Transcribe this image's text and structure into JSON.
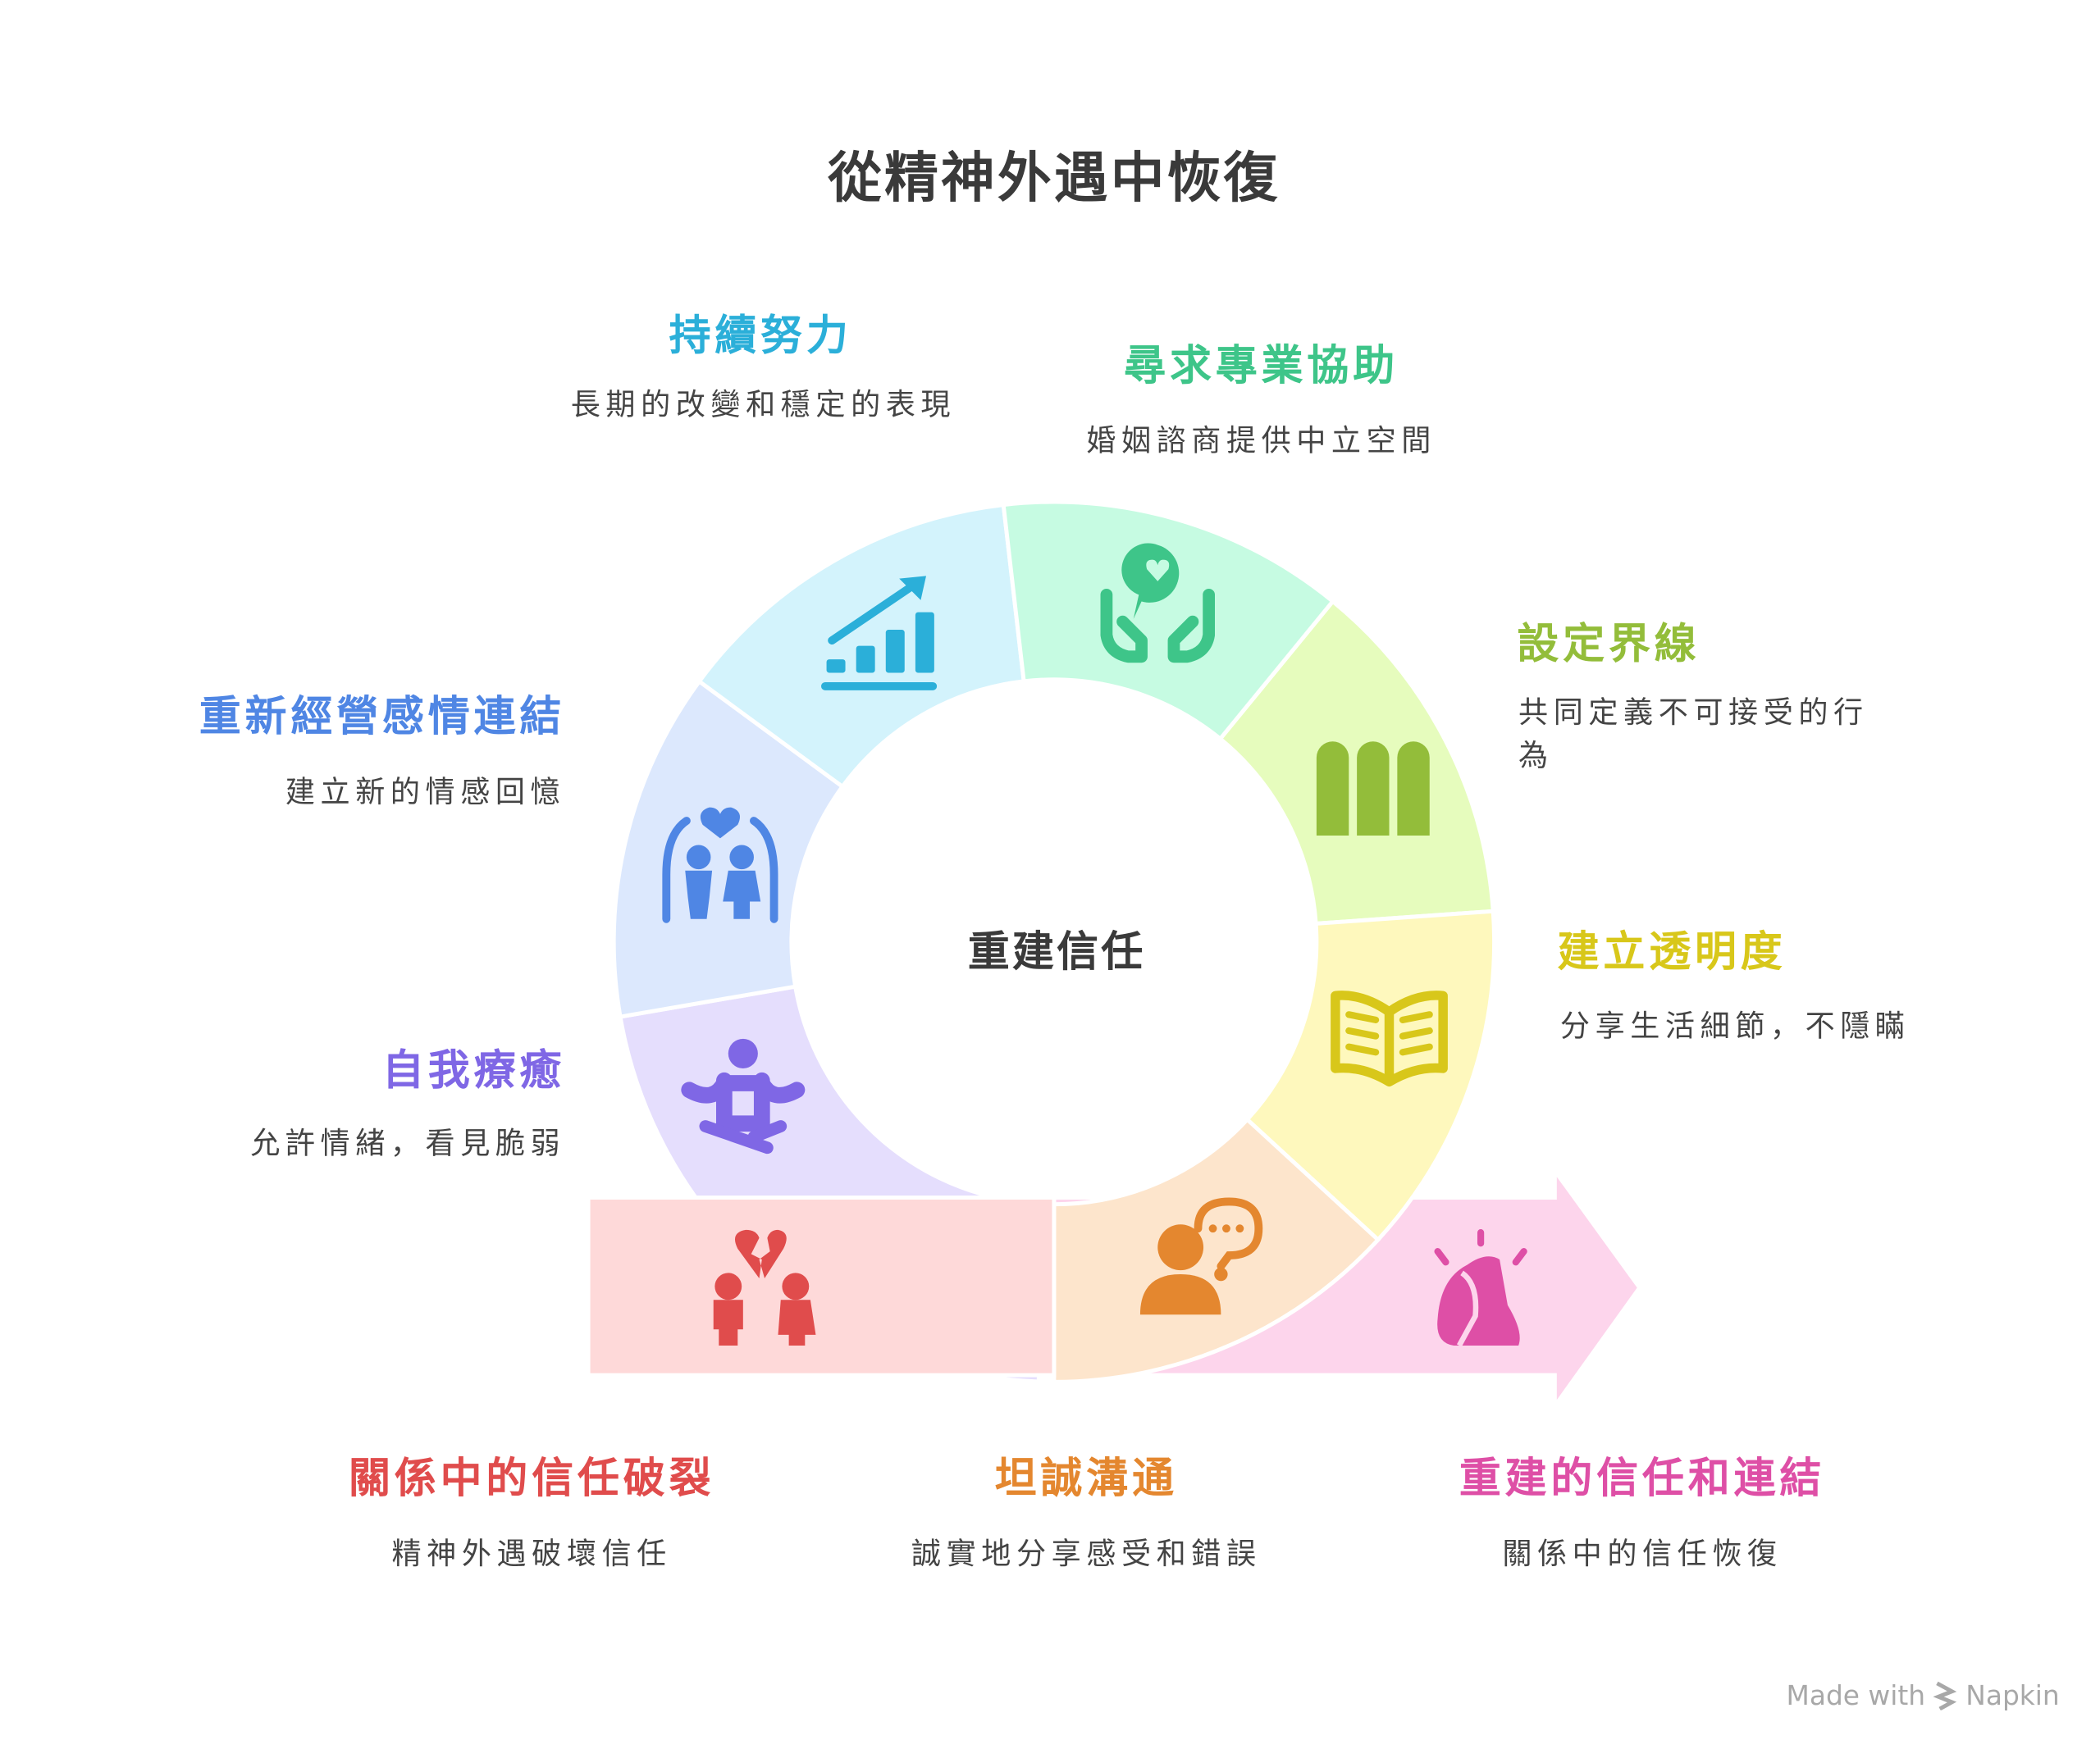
{
  "title": "從精神外遇中恢復",
  "center_label": "重建信任",
  "ring_steps": [
    {
      "id": "self-healing",
      "title": "自我療癒",
      "desc": "允許情緒，看見脆弱",
      "color": "#7f67e5",
      "fill": "#e5defd",
      "icon": "meditation-icon"
    },
    {
      "id": "reconnect",
      "title": "重新經營感情連結",
      "desc": "建立新的情感回憶",
      "color": "#4f86e4",
      "fill": "#dce8fd",
      "icon": "couple-heart-arch-icon"
    },
    {
      "id": "sustained-effort",
      "title": "持續努力",
      "desc": "長期的改變和穩定的表現",
      "color": "#2bafd9",
      "fill": "#d3f3fc",
      "icon": "growth-chart-icon"
    },
    {
      "id": "professional-help",
      "title": "尋求專業協助",
      "desc": "婚姻諮商提供中立空間",
      "color": "#3ec589",
      "fill": "#c6fbe2",
      "icon": "hands-heart-bubble-icon"
    },
    {
      "id": "boundaries",
      "title": "設定界線",
      "desc": "共同定義不可接受的行為",
      "color": "#93bd3a",
      "fill": "#e6fcbd",
      "icon": "fence-icon"
    },
    {
      "id": "transparency",
      "title": "建立透明度",
      "desc": "分享生活細節，不隱瞞",
      "color": "#d8c71a",
      "fill": "#fef8bd",
      "icon": "open-book-icon"
    },
    {
      "id": "honest-communication",
      "title": "坦誠溝通",
      "desc": "誠實地分享感受和錯誤",
      "color": "#e4872f",
      "fill": "#fde5cc",
      "icon": "person-speech-icon"
    }
  ],
  "start": {
    "title": "關係中的信任破裂",
    "desc": "精神外遇破壞信任",
    "color": "#e04c4c",
    "fill": "#fed9d9",
    "icon": "broken-heart-couple-icon"
  },
  "end": {
    "title": "重建的信任和連結",
    "desc": "關係中的信任恢復",
    "color": "#de4fa6",
    "fill": "#fdd5ec",
    "icon": "embrace-icon"
  },
  "branding": {
    "made_with": "Made with",
    "brand": "Napkin"
  }
}
